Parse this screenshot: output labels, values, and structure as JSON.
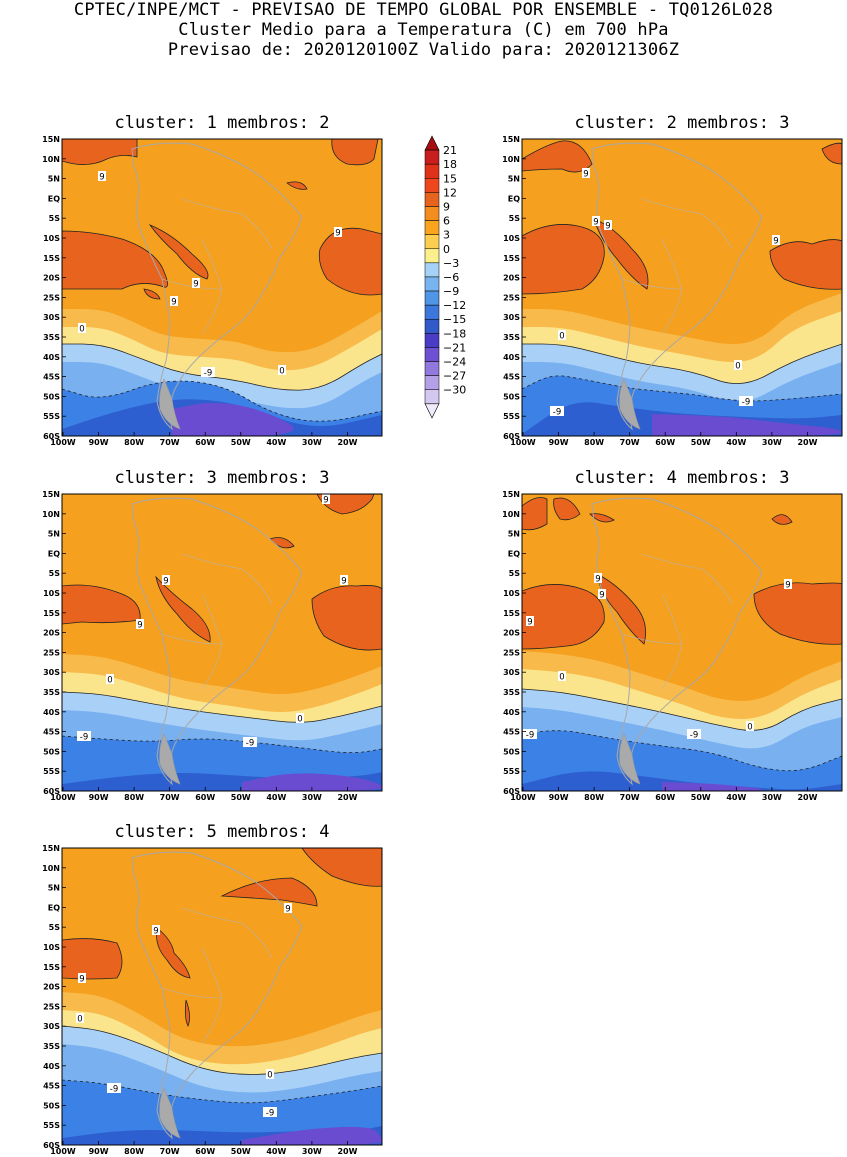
{
  "header": {
    "line1": "CPTEC/INPE/MCT - PREVISAO DE TEMPO GLOBAL POR ENSEMBLE - TQ0126L028",
    "line2": "Cluster Medio para a Temperatura (C) em 700 hPa",
    "line3": "Previsao de: 2020120100Z   Valido para: 2020121306Z"
  },
  "axes": {
    "lat_labels": [
      "15N",
      "10N",
      "5N",
      "EQ",
      "5S",
      "10S",
      "15S",
      "20S",
      "25S",
      "30S",
      "35S",
      "40S",
      "45S",
      "50S",
      "55S",
      "60S"
    ],
    "lon_labels": [
      "100W",
      "90W",
      "80W",
      "70W",
      "60W",
      "50W",
      "40W",
      "30W",
      "20W"
    ]
  },
  "colorbar": {
    "labels": [
      "21",
      "18",
      "15",
      "12",
      "9",
      "6",
      "3",
      "0",
      "-3",
      "-6",
      "-9",
      "-12",
      "-15",
      "-18",
      "-21",
      "-24",
      "-27",
      "-30"
    ],
    "colors": [
      "#a50f0f",
      "#c81e1e",
      "#e03218",
      "#f0461e",
      "#e8641e",
      "#f58c1e",
      "#fba51e",
      "#fccf52",
      "#fbf08c",
      "#a6d2f8",
      "#78b4f0",
      "#5096e6",
      "#3c78dc",
      "#325ac8",
      "#4a3cc4",
      "#6e50d2",
      "#9078dc",
      "#b4a0e6",
      "#d2c8f0",
      "#f0ebfa"
    ]
  },
  "panels": [
    {
      "title": "cluster: 1   membros: 2",
      "contour_labels": [
        "9",
        "9",
        "9",
        "9",
        "0",
        "0",
        "-9"
      ]
    },
    {
      "title": "cluster: 2   membros: 3",
      "contour_labels": [
        "9",
        "9",
        "9",
        "9",
        "0",
        "0",
        "-9",
        "-9"
      ]
    },
    {
      "title": "cluster: 3   membros: 3",
      "contour_labels": [
        "9",
        "9",
        "9",
        "9",
        "0",
        "0",
        "-9",
        "-9"
      ]
    },
    {
      "title": "cluster: 4   membros: 3",
      "contour_labels": [
        "9",
        "9",
        "9",
        "9",
        "0",
        "0",
        "-9",
        "-9"
      ]
    },
    {
      "title": "cluster: 5   membros: 4",
      "contour_labels": [
        "9",
        "9",
        "9",
        "0",
        "0",
        "-9",
        "-9"
      ]
    }
  ]
}
